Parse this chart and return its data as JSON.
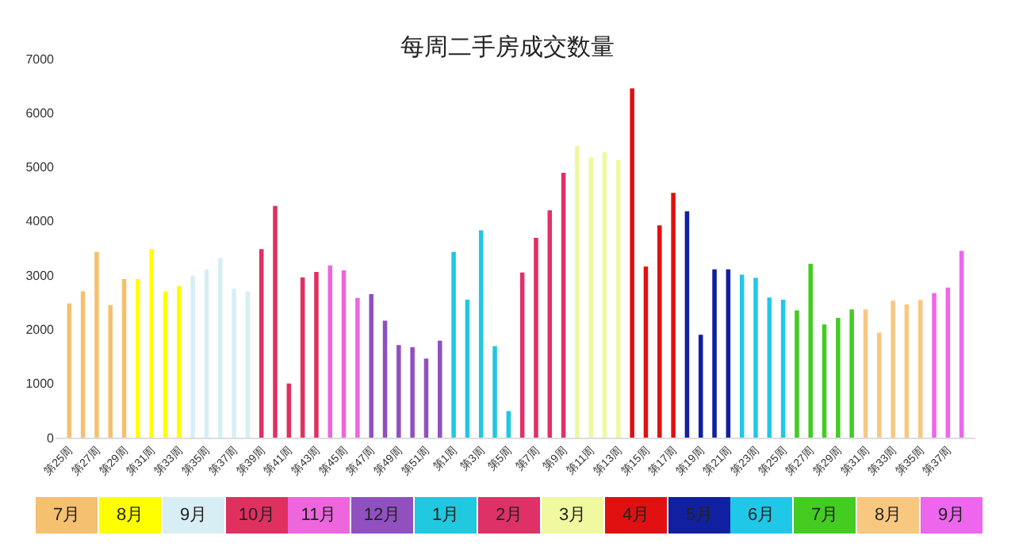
{
  "chart_data": {
    "type": "bar",
    "title": "每周二手房成交数量",
    "categories": [
      "第25周",
      null,
      "第27周",
      null,
      "第29周",
      null,
      "第31周",
      null,
      "第33周",
      null,
      "第35周",
      null,
      "第37周",
      null,
      "第39周",
      null,
      "第41周",
      null,
      "第43周",
      null,
      "第45周",
      null,
      "第47周",
      null,
      "第49周",
      null,
      "第51周",
      null,
      "第1周",
      null,
      "第3周",
      null,
      "第5周",
      null,
      "第7周",
      null,
      "第9周",
      null,
      "第11周",
      null,
      "第13周",
      null,
      "第15周",
      null,
      "第17周",
      null,
      "第19周",
      null,
      "第21周",
      null,
      "第23周",
      null,
      "第25周",
      null,
      "第27周",
      null,
      "第29周",
      null,
      "第31周",
      null,
      "第33周",
      null,
      "第35周",
      null,
      "第37周",
      null
    ],
    "values": [
      2480,
      2700,
      3430,
      2450,
      2930,
      2930,
      3480,
      2700,
      2800,
      2990,
      3110,
      3320,
      2750,
      2700,
      3480,
      4280,
      1000,
      2960,
      3060,
      3180,
      3090,
      2580,
      2650,
      2160,
      1710,
      1670,
      1460,
      1790,
      3430,
      2550,
      3830,
      1690,
      490,
      3050,
      3690,
      4200,
      4890,
      5390,
      5180,
      5270,
      5130,
      6450,
      3160,
      3920,
      4520,
      4180,
      1900,
      3110,
      3110,
      3010,
      2950,
      2590,
      2550,
      2350,
      3210,
      2090,
      2210,
      2370,
      2370,
      1940,
      2530,
      2460,
      2540,
      2670,
      2770,
      3450
    ],
    "colors": [
      "#f5c070",
      "#f5c070",
      "#f5c070",
      "#f5c070",
      "#f5c070",
      "#ffff00",
      "#ffff00",
      "#ffff00",
      "#ffff00",
      "#d8eef5",
      "#d8eef5",
      "#d8eef5",
      "#d8eef5",
      "#d8eef5",
      "#e03060",
      "#e03060",
      "#e03060",
      "#e03060",
      "#e03060",
      "#ee66dd",
      "#ee66dd",
      "#ee66dd",
      "#9050c0",
      "#9050c0",
      "#9050c0",
      "#9050c0",
      "#9050c0",
      "#9050c0",
      "#20c8e0",
      "#20c8e0",
      "#20c8e0",
      "#20c8e0",
      "#20c8e0",
      "#e03068",
      "#e03068",
      "#e03068",
      "#e03068",
      "#f0f8a0",
      "#f0f8a0",
      "#f0f8a0",
      "#f0f8a0",
      "#e01010",
      "#e01010",
      "#e01010",
      "#e01010",
      "#1020a0",
      "#1020a0",
      "#1020a0",
      "#1020a0",
      "#20c8e8",
      "#20c8e8",
      "#20c8e8",
      "#20c8e8",
      "#44cc22",
      "#44cc22",
      "#44cc22",
      "#44cc22",
      "#44cc22",
      "#f8c880",
      "#f8c880",
      "#f8c880",
      "#f8c880",
      "#f8c880",
      "#ee66ee",
      "#ee66ee",
      "#ee66ee"
    ],
    "ylim": [
      0,
      7000
    ],
    "yticks": [
      0,
      1000,
      2000,
      3000,
      4000,
      5000,
      6000,
      7000
    ],
    "grid": false,
    "annotations": [
      "7月",
      "8月",
      "9月",
      "10月",
      "11月",
      "12月",
      "1月",
      "2月",
      "3月",
      "4月",
      "5月",
      "6月",
      "7月",
      "8月",
      "9月"
    ]
  }
}
